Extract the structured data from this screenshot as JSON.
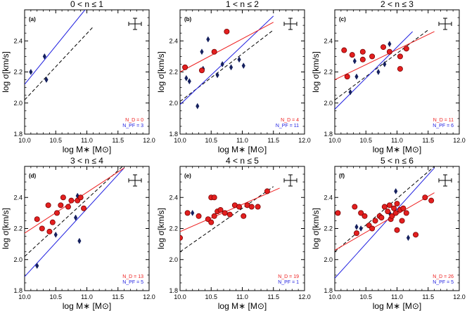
{
  "figure": {
    "row_xlabel": "log M∗ [M⊙]",
    "col_ylabel": "log σ[km/s]"
  },
  "chart_data": [
    {
      "type": "scatter",
      "title": "0 < n ≤ 1",
      "panel_label": "(a)",
      "xlabel": "log M∗ [M⊙]",
      "ylabel": "log σ[km/s]",
      "xlim": [
        10.0,
        12.0
      ],
      "ylim": [
        1.8,
        2.6
      ],
      "xticks": [
        "10.0",
        "10.5",
        "11.0",
        "11.5",
        "12.0"
      ],
      "yticks": [
        "1.8",
        "2.0",
        "2.2",
        "2.4"
      ],
      "count_d": "N_D = 0",
      "count_p": "N_PF = 3",
      "disks": [],
      "pseudo": [
        [
          10.1,
          2.2
        ],
        [
          10.32,
          2.3
        ],
        [
          10.35,
          2.15
        ]
      ],
      "fit_disk": null,
      "fit_pseudo": [
        [
          10.0,
          2.12
        ],
        [
          10.97,
          2.6
        ]
      ],
      "ref_dashed": [
        [
          10.0,
          2.02
        ],
        [
          11.1,
          2.49
        ]
      ]
    },
    {
      "type": "scatter",
      "title": "1 < n ≤ 2",
      "panel_label": "(b)",
      "xlabel": "log M∗ [M⊙]",
      "ylabel": "log σ[km/s]",
      "xlim": [
        10.0,
        12.0
      ],
      "ylim": [
        1.8,
        2.6
      ],
      "xticks": [
        "10.0",
        "10.5",
        "11.0",
        "11.5",
        "12.0"
      ],
      "yticks": [
        "1.8",
        "2.0",
        "2.2",
        "2.4"
      ],
      "count_d": "N_D = 4",
      "count_p": "N_PF = 11",
      "disks": [
        [
          10.08,
          2.23
        ],
        [
          10.35,
          2.21
        ],
        [
          10.55,
          2.33
        ],
        [
          10.75,
          2.46
        ]
      ],
      "pseudo": [
        [
          10.1,
          2.16
        ],
        [
          10.15,
          2.14
        ],
        [
          10.28,
          1.98
        ],
        [
          10.35,
          2.33
        ],
        [
          10.37,
          2.22
        ],
        [
          10.45,
          2.41
        ],
        [
          10.6,
          2.18
        ],
        [
          10.68,
          2.25
        ],
        [
          10.82,
          2.23
        ],
        [
          10.95,
          2.28
        ],
        [
          11.02,
          2.24
        ]
      ],
      "fit_disk": [
        [
          10.0,
          2.2
        ],
        [
          11.5,
          2.52
        ]
      ],
      "fit_pseudo": [
        [
          10.0,
          1.99
        ],
        [
          11.5,
          2.56
        ]
      ],
      "ref_dashed": [
        [
          10.0,
          2.01
        ],
        [
          11.5,
          2.47
        ]
      ]
    },
    {
      "type": "scatter",
      "title": "2 < n ≤ 3",
      "panel_label": "(c)",
      "xlabel": "log M∗ [M⊙]",
      "ylabel": "log σ[km/s]",
      "xlim": [
        10.0,
        12.0
      ],
      "ylim": [
        1.8,
        2.6
      ],
      "xticks": [
        "10.0",
        "10.5",
        "11.0",
        "11.5",
        "12.0"
      ],
      "yticks": [
        "1.8",
        "2.0",
        "2.2",
        "2.4"
      ],
      "count_d": "N_D = 11",
      "count_p": "N_PF = 6",
      "disks": [
        [
          10.15,
          2.34
        ],
        [
          10.28,
          2.31
        ],
        [
          10.45,
          2.33
        ],
        [
          10.6,
          2.3
        ],
        [
          10.78,
          2.36
        ],
        [
          10.88,
          2.33
        ],
        [
          11.05,
          2.22
        ],
        [
          11.05,
          2.3
        ],
        [
          11.15,
          2.35
        ],
        [
          10.45,
          2.28
        ],
        [
          10.2,
          2.17
        ]
      ],
      "pseudo": [
        [
          10.25,
          2.07
        ],
        [
          10.35,
          2.17
        ],
        [
          10.7,
          2.2
        ],
        [
          10.8,
          2.25
        ],
        [
          10.88,
          2.38
        ],
        [
          10.32,
          2.27
        ]
      ],
      "fit_disk": [
        [
          10.0,
          2.15
        ],
        [
          11.6,
          2.46
        ]
      ],
      "fit_pseudo": [
        [
          10.0,
          1.96
        ],
        [
          11.25,
          2.46
        ]
      ],
      "ref_dashed": [
        [
          10.0,
          2.02
        ],
        [
          11.5,
          2.47
        ]
      ]
    },
    {
      "type": "scatter",
      "title": "3 < n ≤ 4",
      "panel_label": "(d)",
      "xlabel": "log M∗ [M⊙]",
      "ylabel": "log σ[km/s]",
      "xlim": [
        10.0,
        12.0
      ],
      "ylim": [
        1.8,
        2.6
      ],
      "xticks": [
        "10.0",
        "10.5",
        "11.0",
        "11.5",
        "12.0"
      ],
      "yticks": [
        "1.8",
        "2.0",
        "2.2",
        "2.4"
      ],
      "count_d": "N_D = 13",
      "count_p": "N_PF = 5",
      "disks": [
        [
          10.2,
          2.26
        ],
        [
          10.28,
          2.2
        ],
        [
          10.38,
          2.35
        ],
        [
          10.45,
          2.24
        ],
        [
          10.52,
          2.3
        ],
        [
          10.58,
          2.35
        ],
        [
          10.62,
          2.4
        ],
        [
          10.7,
          2.34
        ],
        [
          10.75,
          2.38
        ],
        [
          10.85,
          2.38
        ],
        [
          10.9,
          2.4
        ],
        [
          10.95,
          2.33
        ],
        [
          10.4,
          2.18
        ]
      ],
      "pseudo": [
        [
          10.2,
          1.96
        ],
        [
          10.5,
          2.16
        ],
        [
          10.82,
          2.27
        ],
        [
          10.88,
          2.12
        ],
        [
          10.85,
          2.41
        ]
      ],
      "fit_disk": [
        [
          10.0,
          2.17
        ],
        [
          11.6,
          2.59
        ]
      ],
      "fit_pseudo": [
        [
          10.0,
          1.89
        ],
        [
          11.6,
          2.59
        ]
      ],
      "ref_dashed": [
        [
          10.0,
          2.02
        ],
        [
          11.6,
          2.61
        ]
      ]
    },
    {
      "type": "scatter",
      "title": "4 < n ≤ 5",
      "panel_label": "(e)",
      "xlabel": "log M∗ [M⊙]",
      "ylabel": "log σ[km/s]",
      "xlim": [
        10.0,
        12.0
      ],
      "ylim": [
        1.8,
        2.6
      ],
      "xticks": [
        "10.0",
        "10.5",
        "11.0",
        "11.5",
        "12.0"
      ],
      "yticks": [
        "1.8",
        "2.0",
        "2.2",
        "2.4"
      ],
      "count_d": "N_D = 19",
      "count_p": "N_PF = 1",
      "disks": [
        [
          10.0,
          2.14
        ],
        [
          10.12,
          2.3
        ],
        [
          10.3,
          2.28
        ],
        [
          10.45,
          2.26
        ],
        [
          10.5,
          2.24
        ],
        [
          10.55,
          2.28
        ],
        [
          10.5,
          2.4
        ],
        [
          10.55,
          2.4
        ],
        [
          10.6,
          2.31
        ],
        [
          10.65,
          2.32
        ],
        [
          10.72,
          2.3
        ],
        [
          10.8,
          2.29
        ],
        [
          10.88,
          2.35
        ],
        [
          10.95,
          2.34
        ],
        [
          11.02,
          2.28
        ],
        [
          11.08,
          2.35
        ],
        [
          11.15,
          2.34
        ],
        [
          11.25,
          2.34
        ],
        [
          11.4,
          2.44
        ]
      ],
      "pseudo": [
        [
          10.2,
          2.3
        ]
      ],
      "fit_disk": [
        [
          10.0,
          2.18
        ],
        [
          11.6,
          2.46
        ]
      ],
      "fit_pseudo": null,
      "ref_dashed": [
        [
          10.0,
          2.05
        ],
        [
          11.5,
          2.47
        ]
      ]
    },
    {
      "type": "scatter",
      "title": "5 < n ≤ 6",
      "panel_label": "(f)",
      "xlabel": "log M∗ [M⊙]",
      "ylabel": "log σ[km/s]",
      "xlim": [
        10.0,
        12.0
      ],
      "ylim": [
        1.8,
        2.6
      ],
      "xticks": [
        "10.0",
        "10.5",
        "11.0",
        "11.5",
        "12.0"
      ],
      "yticks": [
        "1.8",
        "2.0",
        "2.2",
        "2.4"
      ],
      "count_d": "N_D = 26",
      "count_p": "N_PF = 5",
      "disks": [
        [
          10.05,
          2.3
        ],
        [
          10.32,
          2.34
        ],
        [
          10.42,
          2.3
        ],
        [
          10.48,
          2.28
        ],
        [
          10.55,
          2.22
        ],
        [
          10.65,
          2.25
        ],
        [
          10.72,
          2.28
        ],
        [
          10.8,
          2.34
        ],
        [
          10.85,
          2.31
        ],
        [
          10.9,
          2.26
        ],
        [
          10.95,
          2.33
        ],
        [
          11.0,
          2.36
        ],
        [
          11.05,
          2.32
        ],
        [
          11.1,
          2.33
        ],
        [
          11.0,
          2.19
        ],
        [
          11.08,
          2.25
        ],
        [
          11.15,
          2.3
        ],
        [
          11.3,
          2.16
        ],
        [
          11.45,
          2.4
        ],
        [
          11.55,
          2.38
        ],
        [
          10.35,
          2.17
        ],
        [
          10.6,
          2.2
        ],
        [
          10.75,
          2.27
        ],
        [
          10.88,
          2.35
        ],
        [
          10.92,
          2.28
        ],
        [
          10.98,
          2.3
        ]
      ],
      "pseudo": [
        [
          10.35,
          2.21
        ],
        [
          10.42,
          2.2
        ],
        [
          10.98,
          2.44
        ],
        [
          11.18,
          2.14
        ],
        [
          10.88,
          2.3
        ]
      ],
      "fit_disk": [
        [
          10.0,
          2.06
        ],
        [
          11.6,
          2.43
        ]
      ],
      "fit_pseudo": [
        [
          10.0,
          1.88
        ],
        [
          11.6,
          2.59
        ]
      ],
      "ref_dashed": [
        [
          10.0,
          2.05
        ],
        [
          11.6,
          2.6
        ]
      ]
    }
  ],
  "colors": {
    "disk_fill": "#e31f1f",
    "disk_stroke": "#7a0000",
    "pseudo": "#15205e",
    "fit_disk": "#ee2020",
    "fit_pseudo": "#2020e0",
    "dashed": "#000000",
    "count_d": "#ee2020",
    "count_p": "#2020e0"
  }
}
